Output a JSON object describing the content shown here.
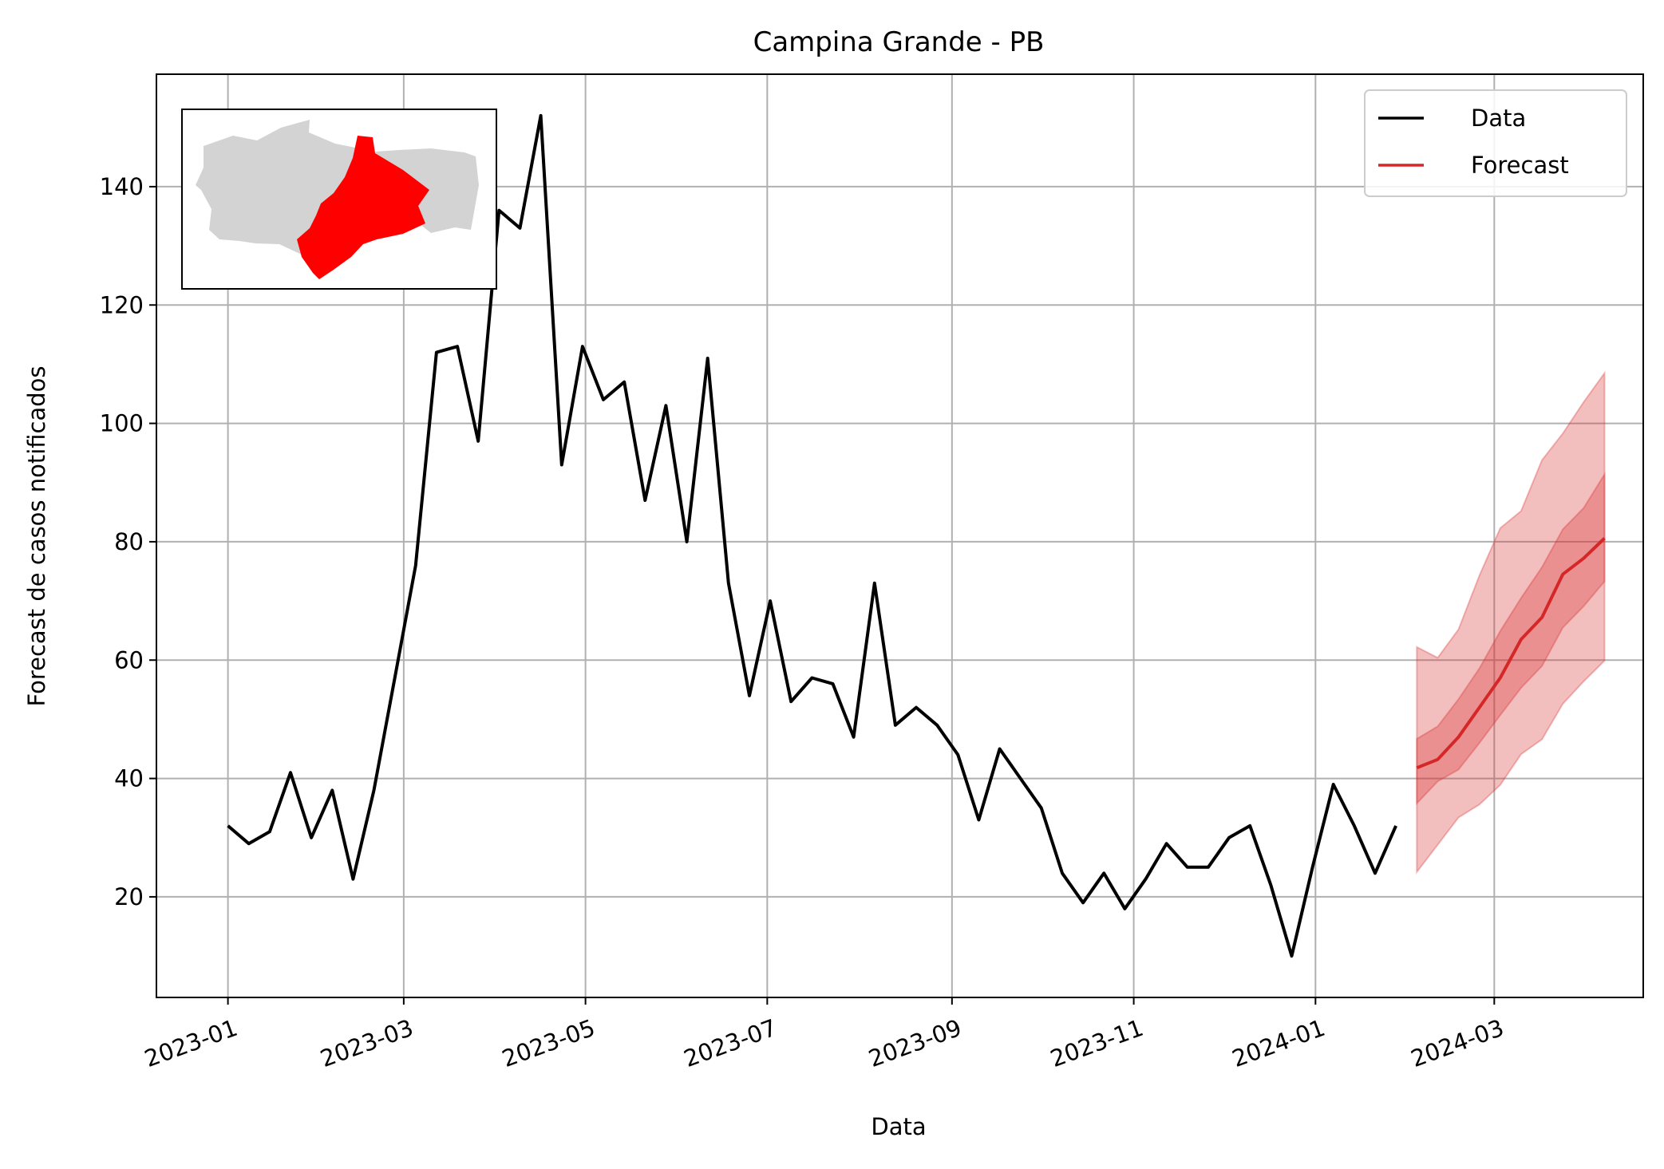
{
  "chart_data": {
    "type": "line",
    "title": "Campina Grande - PB",
    "xlabel": "Data",
    "ylabel": "Forecast de casos notificados",
    "x_ticks": [
      "2023-01",
      "2023-03",
      "2023-05",
      "2023-07",
      "2023-09",
      "2023-11",
      "2024-01",
      "2024-03"
    ],
    "y_ticks": [
      20,
      40,
      60,
      80,
      100,
      120,
      140
    ],
    "xlim": [
      "2022-12-08",
      "2024-04-20"
    ],
    "ylim": [
      3,
      159
    ],
    "grid": true,
    "legend_position": "top-right",
    "series": [
      {
        "name": "Data",
        "color": "#000000",
        "x": [
          "2023-01-01",
          "2023-01-08",
          "2023-01-15",
          "2023-01-22",
          "2023-01-29",
          "2023-02-05",
          "2023-02-12",
          "2023-02-19",
          "2023-02-26",
          "2023-03-05",
          "2023-03-12",
          "2023-03-19",
          "2023-03-26",
          "2023-04-02",
          "2023-04-09",
          "2023-04-16",
          "2023-04-23",
          "2023-04-30",
          "2023-05-07",
          "2023-05-14",
          "2023-05-21",
          "2023-05-28",
          "2023-06-04",
          "2023-06-11",
          "2023-06-18",
          "2023-06-25",
          "2023-07-02",
          "2023-07-09",
          "2023-07-16",
          "2023-07-23",
          "2023-07-30",
          "2023-08-06",
          "2023-08-13",
          "2023-08-20",
          "2023-08-27",
          "2023-09-03",
          "2023-09-10",
          "2023-09-17",
          "2023-09-24",
          "2023-10-01",
          "2023-10-08",
          "2023-10-15",
          "2023-10-22",
          "2023-10-29",
          "2023-11-05",
          "2023-11-12",
          "2023-11-19",
          "2023-11-26",
          "2023-12-03",
          "2023-12-10",
          "2023-12-17",
          "2023-12-24",
          "2023-12-31",
          "2024-01-07",
          "2024-01-14",
          "2024-01-21",
          "2024-01-28"
        ],
        "values": [
          32,
          29,
          31,
          41,
          30,
          38,
          23,
          38,
          57,
          76,
          112,
          113,
          97,
          136,
          133,
          152,
          93,
          113,
          104,
          107,
          87,
          103,
          80,
          111,
          73,
          54,
          70,
          53,
          57,
          56,
          47,
          73,
          49,
          52,
          49,
          44,
          33,
          45,
          40,
          35,
          24,
          19,
          24,
          18,
          23,
          29,
          25,
          25,
          30,
          32,
          22,
          10,
          25,
          39,
          32,
          24,
          32
        ]
      },
      {
        "name": "Forecast",
        "color": "#d62728",
        "x": [
          "2024-02-04",
          "2024-02-11",
          "2024-02-18",
          "2024-02-25",
          "2024-03-03",
          "2024-03-10",
          "2024-03-17",
          "2024-03-24",
          "2024-03-31",
          "2024-04-07"
        ],
        "values": [
          41.8,
          43.2,
          47,
          52,
          57,
          63.5,
          67.2,
          74.5,
          77.2,
          80.6
        ],
        "inner_lower": [
          35.8,
          39.5,
          41.5,
          46.0,
          50.7,
          55.3,
          59.0,
          65.5,
          69.1,
          73.3
        ],
        "inner_upper": [
          46.7,
          48.8,
          53.4,
          58.6,
          64.9,
          70.5,
          75.7,
          82.1,
          85.7,
          91.4
        ],
        "outer_lower": [
          24.2,
          28.8,
          33.4,
          35.6,
          38.9,
          44.1,
          46.6,
          52.6,
          56.4,
          59.9
        ],
        "outer_upper": [
          62.2,
          60.4,
          65.2,
          74.3,
          82.3,
          85.2,
          93.8,
          98.3,
          103.6,
          108.5
        ]
      }
    ],
    "inset": {
      "type": "map",
      "highlight_color": "#ff0000",
      "base_color": "#d3d3d3"
    }
  }
}
